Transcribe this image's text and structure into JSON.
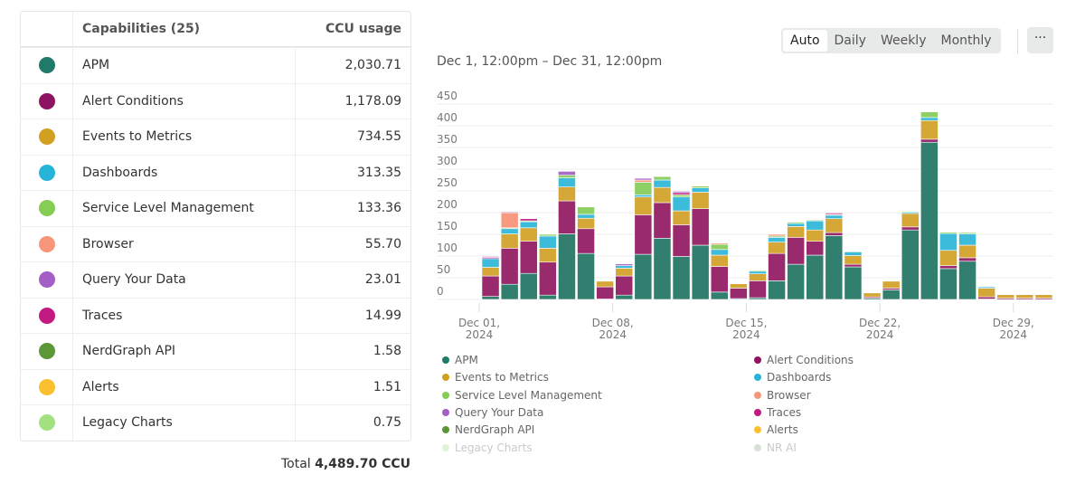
{
  "table": {
    "header": {
      "capabilities": "Capabilities (25)",
      "usage": "CCU usage"
    },
    "rows": [
      {
        "name": "APM",
        "value": "2,030.71",
        "color": "#1f7a6a"
      },
      {
        "name": "Alert Conditions",
        "value": "1,178.09",
        "color": "#8e1461"
      },
      {
        "name": "Events to Metrics",
        "value": "734.55",
        "color": "#d1a021"
      },
      {
        "name": "Dashboards",
        "value": "313.35",
        "color": "#26b5d8"
      },
      {
        "name": "Service Level Management",
        "value": "133.36",
        "color": "#85cd55"
      },
      {
        "name": "Browser",
        "value": "55.70",
        "color": "#f79679"
      },
      {
        "name": "Query Your Data",
        "value": "23.01",
        "color": "#a45fc6"
      },
      {
        "name": "Traces",
        "value": "14.99",
        "color": "#c21a80"
      },
      {
        "name": "NerdGraph API",
        "value": "1.58",
        "color": "#5b9637"
      },
      {
        "name": "Alerts",
        "value": "1.51",
        "color": "#fbc02d"
      },
      {
        "name": "Legacy Charts",
        "value": "0.75",
        "color": "#a3e07f"
      }
    ],
    "total_label": "Total",
    "total_value": "4,489.70 CCU"
  },
  "toolbar": {
    "date_range": "Dec 1, 12:00pm – Dec 31, 12:00pm",
    "granularity": [
      "Auto",
      "Daily",
      "Weekly",
      "Monthly"
    ],
    "selected": "Auto",
    "more_label": "···"
  },
  "legend": [
    {
      "name": "APM",
      "color": "#1f7a6a"
    },
    {
      "name": "Alert Conditions",
      "color": "#8e1461"
    },
    {
      "name": "Events to Metrics",
      "color": "#d1a021"
    },
    {
      "name": "Dashboards",
      "color": "#26b5d8"
    },
    {
      "name": "Service Level Management",
      "color": "#85cd55"
    },
    {
      "name": "Browser",
      "color": "#f79679"
    },
    {
      "name": "Query Your Data",
      "color": "#a45fc6"
    },
    {
      "name": "Traces",
      "color": "#c21a80"
    },
    {
      "name": "NerdGraph API",
      "color": "#5b9637"
    },
    {
      "name": "Alerts",
      "color": "#fbc02d"
    },
    {
      "name": "Legacy Charts",
      "color": "#a3e07f"
    },
    {
      "name": "NR AI",
      "color": "#8fae8f"
    }
  ],
  "chart_data": {
    "type": "bar",
    "stacked": true,
    "x_start": "2024-12-01",
    "x_ticks": [
      [
        "Dec 01,",
        "2024"
      ],
      [
        "Dec 08,",
        "2024"
      ],
      [
        "Dec 15,",
        "2024"
      ],
      [
        "Dec 22,",
        "2024"
      ],
      [
        "Dec 29,",
        "2024"
      ]
    ],
    "ylim": [
      0,
      450
    ],
    "yticks": [
      0,
      50,
      100,
      150,
      200,
      250,
      300,
      350,
      400,
      450
    ],
    "grid": true,
    "legend_placement": "bottom",
    "series": [
      {
        "name": "APM",
        "color": "#327f70",
        "values": [
          7,
          35,
          60,
          10,
          151,
          106,
          1,
          10,
          104,
          141,
          99,
          125,
          17,
          2,
          4,
          43,
          81,
          102,
          147,
          75,
          3,
          22,
          160,
          362,
          71,
          88,
          1,
          0,
          0,
          0
        ]
      },
      {
        "name": "Alert Conditions",
        "color": "#982a6d",
        "values": [
          47,
          83,
          74,
          76,
          76,
          57,
          28,
          44,
          91,
          82,
          73,
          84,
          59,
          24,
          39,
          63,
          62,
          32,
          7,
          6,
          3,
          4,
          7,
          7,
          7,
          8,
          5,
          3,
          3,
          3
        ]
      },
      {
        "name": "Events to Metrics",
        "color": "#d4a737",
        "values": [
          20,
          33,
          31,
          32,
          32,
          24,
          13,
          18,
          41,
          35,
          32,
          38,
          26,
          10,
          16,
          26,
          25,
          26,
          32,
          20,
          9,
          16,
          31,
          43,
          35,
          29,
          20,
          8,
          8,
          8
        ]
      },
      {
        "name": "Dashboards",
        "color": "#3dbbdb",
        "values": [
          20,
          12,
          14,
          28,
          21,
          9,
          0,
          6,
          5,
          17,
          32,
          10,
          13,
          0,
          6,
          11,
          7,
          21,
          8,
          8,
          0,
          0,
          3,
          7,
          39,
          26,
          3,
          0,
          0,
          0
        ]
      },
      {
        "name": "Service Level Management",
        "color": "#8fd066",
        "values": [
          0,
          2,
          2,
          4,
          6,
          17,
          0,
          0,
          29,
          8,
          5,
          4,
          12,
          0,
          2,
          3,
          3,
          2,
          2,
          2,
          0,
          0,
          2,
          13,
          3,
          3,
          0,
          0,
          0,
          0
        ]
      },
      {
        "name": "Browser",
        "color": "#f79a80",
        "values": [
          0,
          35,
          0,
          0,
          0,
          0,
          0,
          0,
          5,
          0,
          0,
          0,
          3,
          0,
          0,
          4,
          0,
          0,
          0,
          0,
          0,
          0,
          0,
          0,
          0,
          0,
          0,
          0,
          0,
          0
        ]
      },
      {
        "name": "Traces",
        "color": "#c4308a",
        "values": [
          3,
          0,
          5,
          0,
          0,
          0,
          0,
          0,
          0,
          0,
          5,
          0,
          0,
          0,
          0,
          0,
          0,
          0,
          3,
          0,
          0,
          0,
          0,
          0,
          0,
          0,
          0,
          0,
          0,
          0
        ]
      },
      {
        "name": "Query Your Data",
        "color": "#a76cc4",
        "values": [
          2,
          2,
          0,
          0,
          9,
          0,
          0,
          4,
          4,
          0,
          3,
          0,
          0,
          0,
          0,
          0,
          0,
          0,
          0,
          0,
          0,
          0,
          0,
          0,
          0,
          0,
          0,
          0,
          0,
          0
        ]
      }
    ]
  }
}
